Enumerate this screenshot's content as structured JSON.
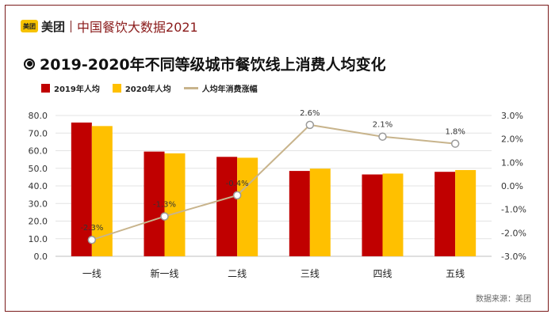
{
  "header": {
    "logo_text": "美团",
    "brand": "美团",
    "title": "中国餐饮大数据2021"
  },
  "title_icon": "radio-bullet-icon",
  "chart_data": {
    "type": "bar",
    "title": "2019-2020年不同等级城市餐饮线上消费人均变化",
    "categories": [
      "一线",
      "新一线",
      "二线",
      "三线",
      "四线",
      "五线"
    ],
    "series": [
      {
        "name": "2019年人均",
        "type": "bar",
        "axis": "left",
        "color": "#c00000",
        "values": [
          76.0,
          59.5,
          56.5,
          48.5,
          46.5,
          48.0
        ]
      },
      {
        "name": "2020年人均",
        "type": "bar",
        "axis": "left",
        "color": "#ffc000",
        "values": [
          74.0,
          58.5,
          56.0,
          49.8,
          47.0,
          49.0
        ]
      },
      {
        "name": "人均年消费涨幅",
        "type": "line",
        "axis": "right",
        "color": "#c8b48c",
        "values": [
          -2.3,
          -1.3,
          -0.4,
          2.6,
          2.1,
          1.8
        ],
        "labels": [
          "-2.3%",
          "-1.3%",
          "-0.4%",
          "2.6%",
          "2.1%",
          "1.8%"
        ]
      }
    ],
    "y_left": {
      "min": 0,
      "max": 80,
      "step": 10,
      "tick_labels": [
        "0.0",
        "10.0",
        "20.0",
        "30.0",
        "40.0",
        "50.0",
        "60.0",
        "70.0",
        "80.0"
      ]
    },
    "y_right": {
      "min": -3.0,
      "max": 3.0,
      "step": 1.0,
      "tick_labels": [
        "-3.0%",
        "-2.0%",
        "-1.0%",
        "0.0%",
        "1.0%",
        "2.0%",
        "3.0%"
      ]
    },
    "legend_position": "top-left",
    "grid": true
  },
  "source": "数据来源：美团"
}
